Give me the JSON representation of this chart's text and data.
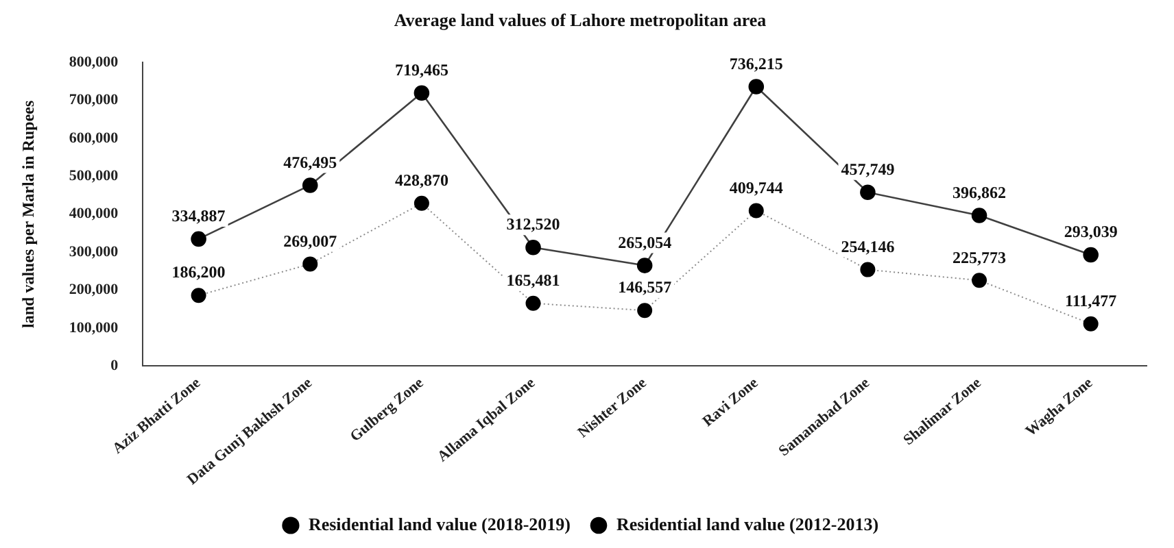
{
  "chart_data": {
    "type": "line",
    "title": "Average land values of Lahore metropolitan area",
    "ylabel": "land values per Marla in Rupees",
    "categories": [
      "Aziz Bhatti Zone",
      "Data Gunj Bakhsh Zone",
      "Gulberg Zone",
      "Allama Iqbal Zone",
      "Nishter Zone",
      "Ravi Zone",
      "Samanabad Zone",
      "Shalimar Zone",
      "Wagha Zone"
    ],
    "series": [
      {
        "name": "Residential land value (2018-2019)",
        "color": "#404040",
        "line_style": "solid",
        "values": [
          334887,
          476495,
          719465,
          312520,
          265054,
          736215,
          457749,
          396862,
          293039
        ],
        "value_labels": [
          "334,887",
          "476,495",
          "719,465",
          "312,520",
          "265,054",
          "736,215",
          "457,749",
          "396,862",
          "293,039"
        ]
      },
      {
        "name": "Residential land value (2012-2013)",
        "color": "#8c8c8c",
        "line_style": "dotted",
        "values": [
          186200,
          269007,
          428870,
          165481,
          146557,
          409744,
          254146,
          225773,
          111477
        ],
        "value_labels": [
          "186,200",
          "269,007",
          "428,870",
          "165,481",
          "146,557",
          "409,744",
          "254,146",
          "225,773",
          "111,477"
        ]
      }
    ],
    "ylim": [
      0,
      800000
    ],
    "yticks": [
      0,
      {
        "value": 100000,
        "label": "100,000"
      },
      {
        "value": 200000,
        "label": "200,000"
      },
      {
        "value": 300000,
        "label": "300,000"
      },
      {
        "value": 400000,
        "label": "400,000"
      },
      {
        "value": 500000,
        "label": "500,000"
      },
      {
        "value": 600000,
        "label": "600,000"
      },
      {
        "value": 700000,
        "label": "700,000"
      },
      {
        "value": 800000,
        "label": "800,000"
      }
    ],
    "grid": false,
    "legend": "bottom",
    "marker": "circle"
  }
}
